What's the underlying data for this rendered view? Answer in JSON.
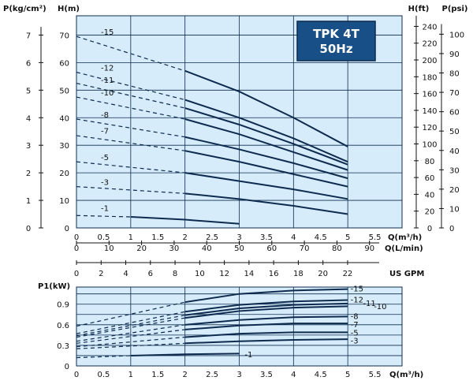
{
  "chart_data": [
    {
      "type": "line",
      "title": "TPK 4T",
      "subtitle": "50Hz",
      "y_label_left_outer": "P(kg/cm²)",
      "y_label_left": "H(m)",
      "y_label_right_inner": "H(ft)",
      "y_label_right_outer": "P(psi)",
      "x_axes": [
        {
          "label": "Q(m³/h)",
          "ticks": [
            "0",
            "0.5",
            "1",
            "1.5",
            "2",
            "2.5",
            "3",
            "3.5",
            "4",
            "4.5",
            "5",
            "5.5"
          ]
        },
        {
          "label": "Q(L/min)",
          "ticks": [
            "0",
            "10",
            "20",
            "30",
            "40",
            "50",
            "60",
            "70",
            "80",
            "90"
          ]
        },
        {
          "label": "US GPM",
          "ticks": [
            "0",
            "2",
            "4",
            "6",
            "8",
            "10",
            "12",
            "14",
            "16",
            "18",
            "20",
            "22"
          ]
        }
      ],
      "y_ticks_h": [
        "0",
        "10",
        "20",
        "30",
        "40",
        "50",
        "60",
        "70"
      ],
      "y_ticks_kg": [
        "0",
        "1",
        "2",
        "3",
        "4",
        "5",
        "6",
        "7"
      ],
      "y_ticks_ft": [
        "0",
        "20",
        "40",
        "60",
        "80",
        "100",
        "120",
        "140",
        "160",
        "180",
        "200",
        "220",
        "240"
      ],
      "y_ticks_psi": [
        "0",
        "10",
        "20",
        "30",
        "40",
        "50",
        "60",
        "70",
        "80",
        "90",
        "100"
      ],
      "xlim": [
        0,
        6
      ],
      "ylim": [
        0,
        77
      ],
      "grid": true,
      "series": [
        {
          "name": "-15",
          "dashed": [
            [
              0,
              69.5
            ],
            [
              2,
              57
            ]
          ],
          "solid": [
            [
              2,
              57
            ],
            [
              3,
              49.5
            ],
            [
              4,
              40
            ],
            [
              5,
              29.5
            ]
          ],
          "label_at": [
            0.45,
            71
          ]
        },
        {
          "name": "-12",
          "dashed": [
            [
              0,
              56.5
            ],
            [
              2,
              46.5
            ]
          ],
          "solid": [
            [
              2,
              46.5
            ],
            [
              3,
              40
            ],
            [
              4,
              32.5
            ],
            [
              5,
              24
            ]
          ],
          "label_at": [
            0.45,
            58
          ]
        },
        {
          "name": "-11",
          "dashed": [
            [
              0,
              52.5
            ],
            [
              2,
              43.5
            ]
          ],
          "solid": [
            [
              2,
              43.5
            ],
            [
              3,
              37.5
            ],
            [
              4,
              30.5
            ],
            [
              5,
              23
            ]
          ],
          "label_at": [
            0.45,
            53.5
          ]
        },
        {
          "name": "-10",
          "dashed": [
            [
              0,
              47.5
            ],
            [
              2,
              39.5
            ]
          ],
          "solid": [
            [
              2,
              39.5
            ],
            [
              3,
              34
            ],
            [
              4,
              27.5
            ],
            [
              5,
              21
            ]
          ],
          "label_at": [
            0.45,
            49
          ]
        },
        {
          "name": "-8",
          "dashed": [
            [
              0,
              39.5
            ],
            [
              2,
              33
            ]
          ],
          "solid": [
            [
              2,
              33
            ],
            [
              3,
              28.5
            ],
            [
              4,
              23.5
            ],
            [
              5,
              18
            ]
          ],
          "label_at": [
            0.45,
            41
          ]
        },
        {
          "name": "-7",
          "dashed": [
            [
              0,
              33.5
            ],
            [
              2,
              28
            ]
          ],
          "solid": [
            [
              2,
              28
            ],
            [
              3,
              24
            ],
            [
              4,
              19.5
            ],
            [
              5,
              15
            ]
          ],
          "label_at": [
            0.45,
            35
          ]
        },
        {
          "name": "-5",
          "dashed": [
            [
              0,
              24
            ],
            [
              2,
              20
            ]
          ],
          "solid": [
            [
              2,
              20
            ],
            [
              3,
              17
            ],
            [
              4,
              14
            ],
            [
              5,
              10.5
            ]
          ],
          "label_at": [
            0.45,
            25.5
          ]
        },
        {
          "name": "-3",
          "dashed": [
            [
              0,
              15
            ],
            [
              2,
              12.5
            ]
          ],
          "solid": [
            [
              2,
              12.5
            ],
            [
              3,
              10.5
            ],
            [
              4,
              8
            ],
            [
              5,
              5
            ]
          ],
          "label_at": [
            0.45,
            16.5
          ]
        },
        {
          "name": "-1",
          "dashed": [
            [
              0,
              4.5
            ],
            [
              1,
              4
            ]
          ],
          "solid": [
            [
              1,
              4
            ],
            [
              2,
              3
            ],
            [
              3,
              1.5
            ]
          ],
          "label_at": [
            0.45,
            7
          ]
        }
      ]
    },
    {
      "type": "line",
      "y_label": "P1(kW)",
      "x_label": "Q(m³/h)",
      "x_ticks": [
        "0",
        "0.5",
        "1",
        "1.5",
        "2",
        "2.5",
        "3",
        "3.5",
        "4",
        "4.5",
        "5",
        "5.5"
      ],
      "y_ticks": [
        "0",
        "0.3",
        "0.6",
        "0.9"
      ],
      "xlim": [
        0,
        6
      ],
      "ylim": [
        0,
        1.15
      ],
      "grid": true,
      "series": [
        {
          "name": "-15",
          "dashed": [
            [
              0,
              0.58
            ],
            [
              2,
              0.93
            ]
          ],
          "solid": [
            [
              2,
              0.93
            ],
            [
              3,
              1.05
            ],
            [
              4,
              1.1
            ],
            [
              5,
              1.12
            ]
          ],
          "label_at": [
            5.05,
            1.12
          ]
        },
        {
          "name": "-12",
          "dashed": [
            [
              0,
              0.47
            ],
            [
              2,
              0.79
            ]
          ],
          "solid": [
            [
              2,
              0.79
            ],
            [
              3,
              0.89
            ],
            [
              4,
              0.94
            ],
            [
              5,
              0.96
            ]
          ],
          "label_at": [
            5.05,
            0.96
          ]
        },
        {
          "name": "-11",
          "dashed": [
            [
              0,
              0.44
            ],
            [
              2,
              0.74
            ]
          ],
          "solid": [
            [
              2,
              0.74
            ],
            [
              3,
              0.84
            ],
            [
              4,
              0.89
            ],
            [
              5,
              0.91
            ]
          ],
          "label_at": [
            5.28,
            0.91
          ]
        },
        {
          "name": "-10",
          "dashed": [
            [
              0,
              0.42
            ],
            [
              2,
              0.7
            ]
          ],
          "solid": [
            [
              2,
              0.7
            ],
            [
              3,
              0.8
            ],
            [
              4,
              0.85
            ],
            [
              5,
              0.87
            ]
          ],
          "label_at": [
            5.48,
            0.86
          ]
        },
        {
          "name": "-8",
          "dashed": [
            [
              0,
              0.36
            ],
            [
              2,
              0.6
            ]
          ],
          "solid": [
            [
              2,
              0.6
            ],
            [
              3,
              0.67
            ],
            [
              4,
              0.71
            ],
            [
              5,
              0.72
            ]
          ],
          "label_at": [
            5.05,
            0.72
          ]
        },
        {
          "name": "-7",
          "dashed": [
            [
              0,
              0.33
            ],
            [
              2,
              0.53
            ]
          ],
          "solid": [
            [
              2,
              0.53
            ],
            [
              3,
              0.59
            ],
            [
              4,
              0.62
            ],
            [
              5,
              0.62
            ]
          ],
          "label_at": [
            5.05,
            0.6
          ]
        },
        {
          "name": "-5",
          "dashed": [
            [
              0,
              0.28
            ],
            [
              2,
              0.42
            ]
          ],
          "solid": [
            [
              2,
              0.42
            ],
            [
              3,
              0.47
            ],
            [
              4,
              0.49
            ],
            [
              5,
              0.49
            ]
          ],
          "label_at": [
            5.05,
            0.48
          ]
        },
        {
          "name": "-3",
          "dashed": [
            [
              0,
              0.25
            ],
            [
              2,
              0.33
            ]
          ],
          "solid": [
            [
              2,
              0.33
            ],
            [
              3,
              0.36
            ],
            [
              4,
              0.38
            ],
            [
              5,
              0.39
            ]
          ],
          "label_at": [
            5.05,
            0.36
          ]
        },
        {
          "name": "-1",
          "dashed": [
            [
              0,
              0.12
            ],
            [
              1,
              0.15
            ]
          ],
          "solid": [
            [
              1,
              0.15
            ],
            [
              2,
              0.17
            ],
            [
              3,
              0.18
            ]
          ],
          "label_at": [
            3.1,
            0.16
          ]
        }
      ]
    }
  ]
}
